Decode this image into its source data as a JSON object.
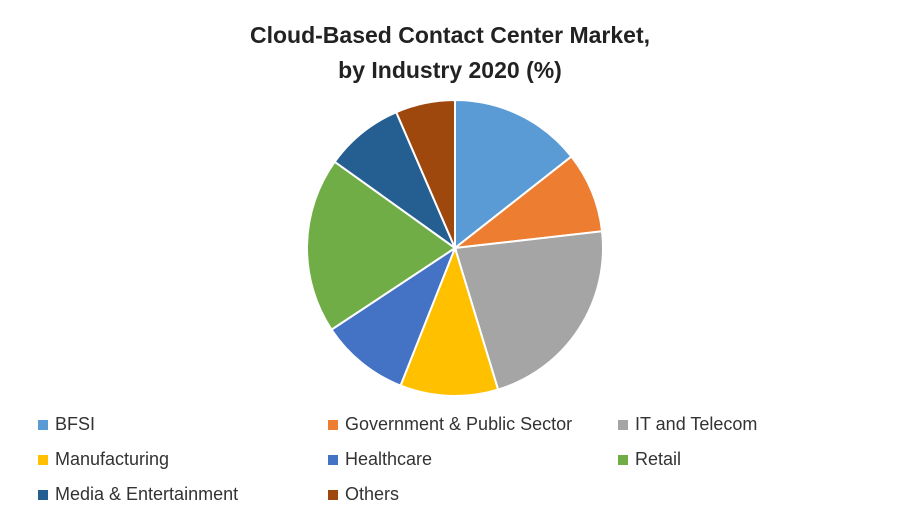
{
  "chart_data": {
    "type": "pie",
    "title": [
      "Cloud-Based Contact Center Market,",
      "by Industry 2020 (%)"
    ],
    "categories": [
      "BFSI",
      "Government & Public Sector",
      "IT and Telecom",
      "Manufacturing",
      "Healthcare",
      "Retail",
      "Media & Entertainment",
      "Others"
    ],
    "values": [
      14.4,
      8.8,
      22.1,
      10.7,
      9.7,
      19.2,
      8.6,
      6.5
    ],
    "colors": [
      "#5b9bd5",
      "#ed7d31",
      "#a5a5a5",
      "#ffc000",
      "#4472c4",
      "#70ad47",
      "#255e91",
      "#9e480e"
    ],
    "legend": "bottom"
  }
}
